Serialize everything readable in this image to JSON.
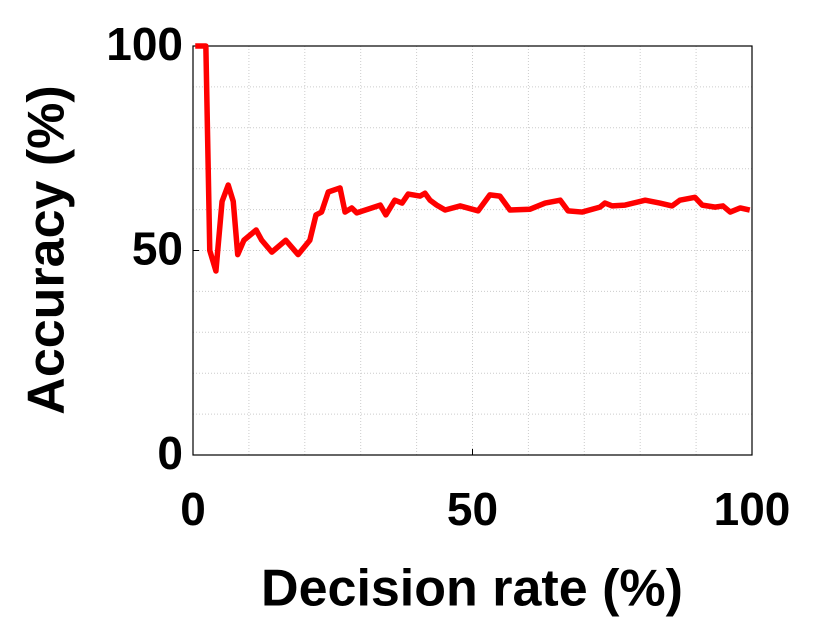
{
  "chart_data": {
    "type": "line",
    "xlabel": "Decision rate (%)",
    "ylabel": "Accuracy (%)",
    "xlim": [
      0,
      100
    ],
    "ylim": [
      0,
      100
    ],
    "xticks": [
      0,
      50,
      100
    ],
    "yticks": [
      0,
      50,
      100
    ],
    "xminorticks": [
      10,
      20,
      30,
      40,
      60,
      70,
      80,
      90
    ],
    "yminorticks": [
      10,
      20,
      30,
      40,
      60,
      70,
      80,
      90
    ],
    "grid": true,
    "series": [
      {
        "color": "#ff0000",
        "x": [
          0.4,
          2.3,
          3,
          4.1,
          5.2,
          6.3,
          7.2,
          8,
          9.1,
          11.3,
          12.3,
          14.1,
          16.6,
          18.8,
          20.9,
          22,
          23,
          24.2,
          26.3,
          27.2,
          28.4,
          29.3,
          33.5,
          34.5,
          36.1,
          37.4,
          38.5,
          40.6,
          41.5,
          42.4,
          43.6,
          45.1,
          47.8,
          51,
          53.1,
          54.9,
          56.7,
          60.3,
          63,
          65.7,
          67.1,
          69.6,
          72.8,
          73.7,
          75,
          77.3,
          80.9,
          83.5,
          85.7,
          87.1,
          89.8,
          91.1,
          93.4,
          94.8,
          96.1,
          97.9,
          99.6
        ],
        "values": [
          100,
          100,
          50,
          45,
          62,
          66,
          62,
          49,
          52.5,
          55,
          52.5,
          49.6,
          52.5,
          49,
          52.5,
          58.7,
          59.4,
          64.3,
          65.3,
          59.4,
          60.4,
          59.2,
          61.1,
          58.7,
          62.3,
          61.6,
          63.8,
          63.3,
          64,
          62.3,
          61.1,
          59.9,
          60.9,
          59.7,
          63.6,
          63.3,
          59.9,
          60.1,
          61.6,
          62.3,
          59.7,
          59.4,
          60.6,
          61.6,
          60.9,
          61.1,
          62.3,
          61.6,
          60.9,
          62.3,
          63,
          61.1,
          60.6,
          60.9,
          59.4,
          60.4,
          59.9
        ]
      }
    ]
  }
}
